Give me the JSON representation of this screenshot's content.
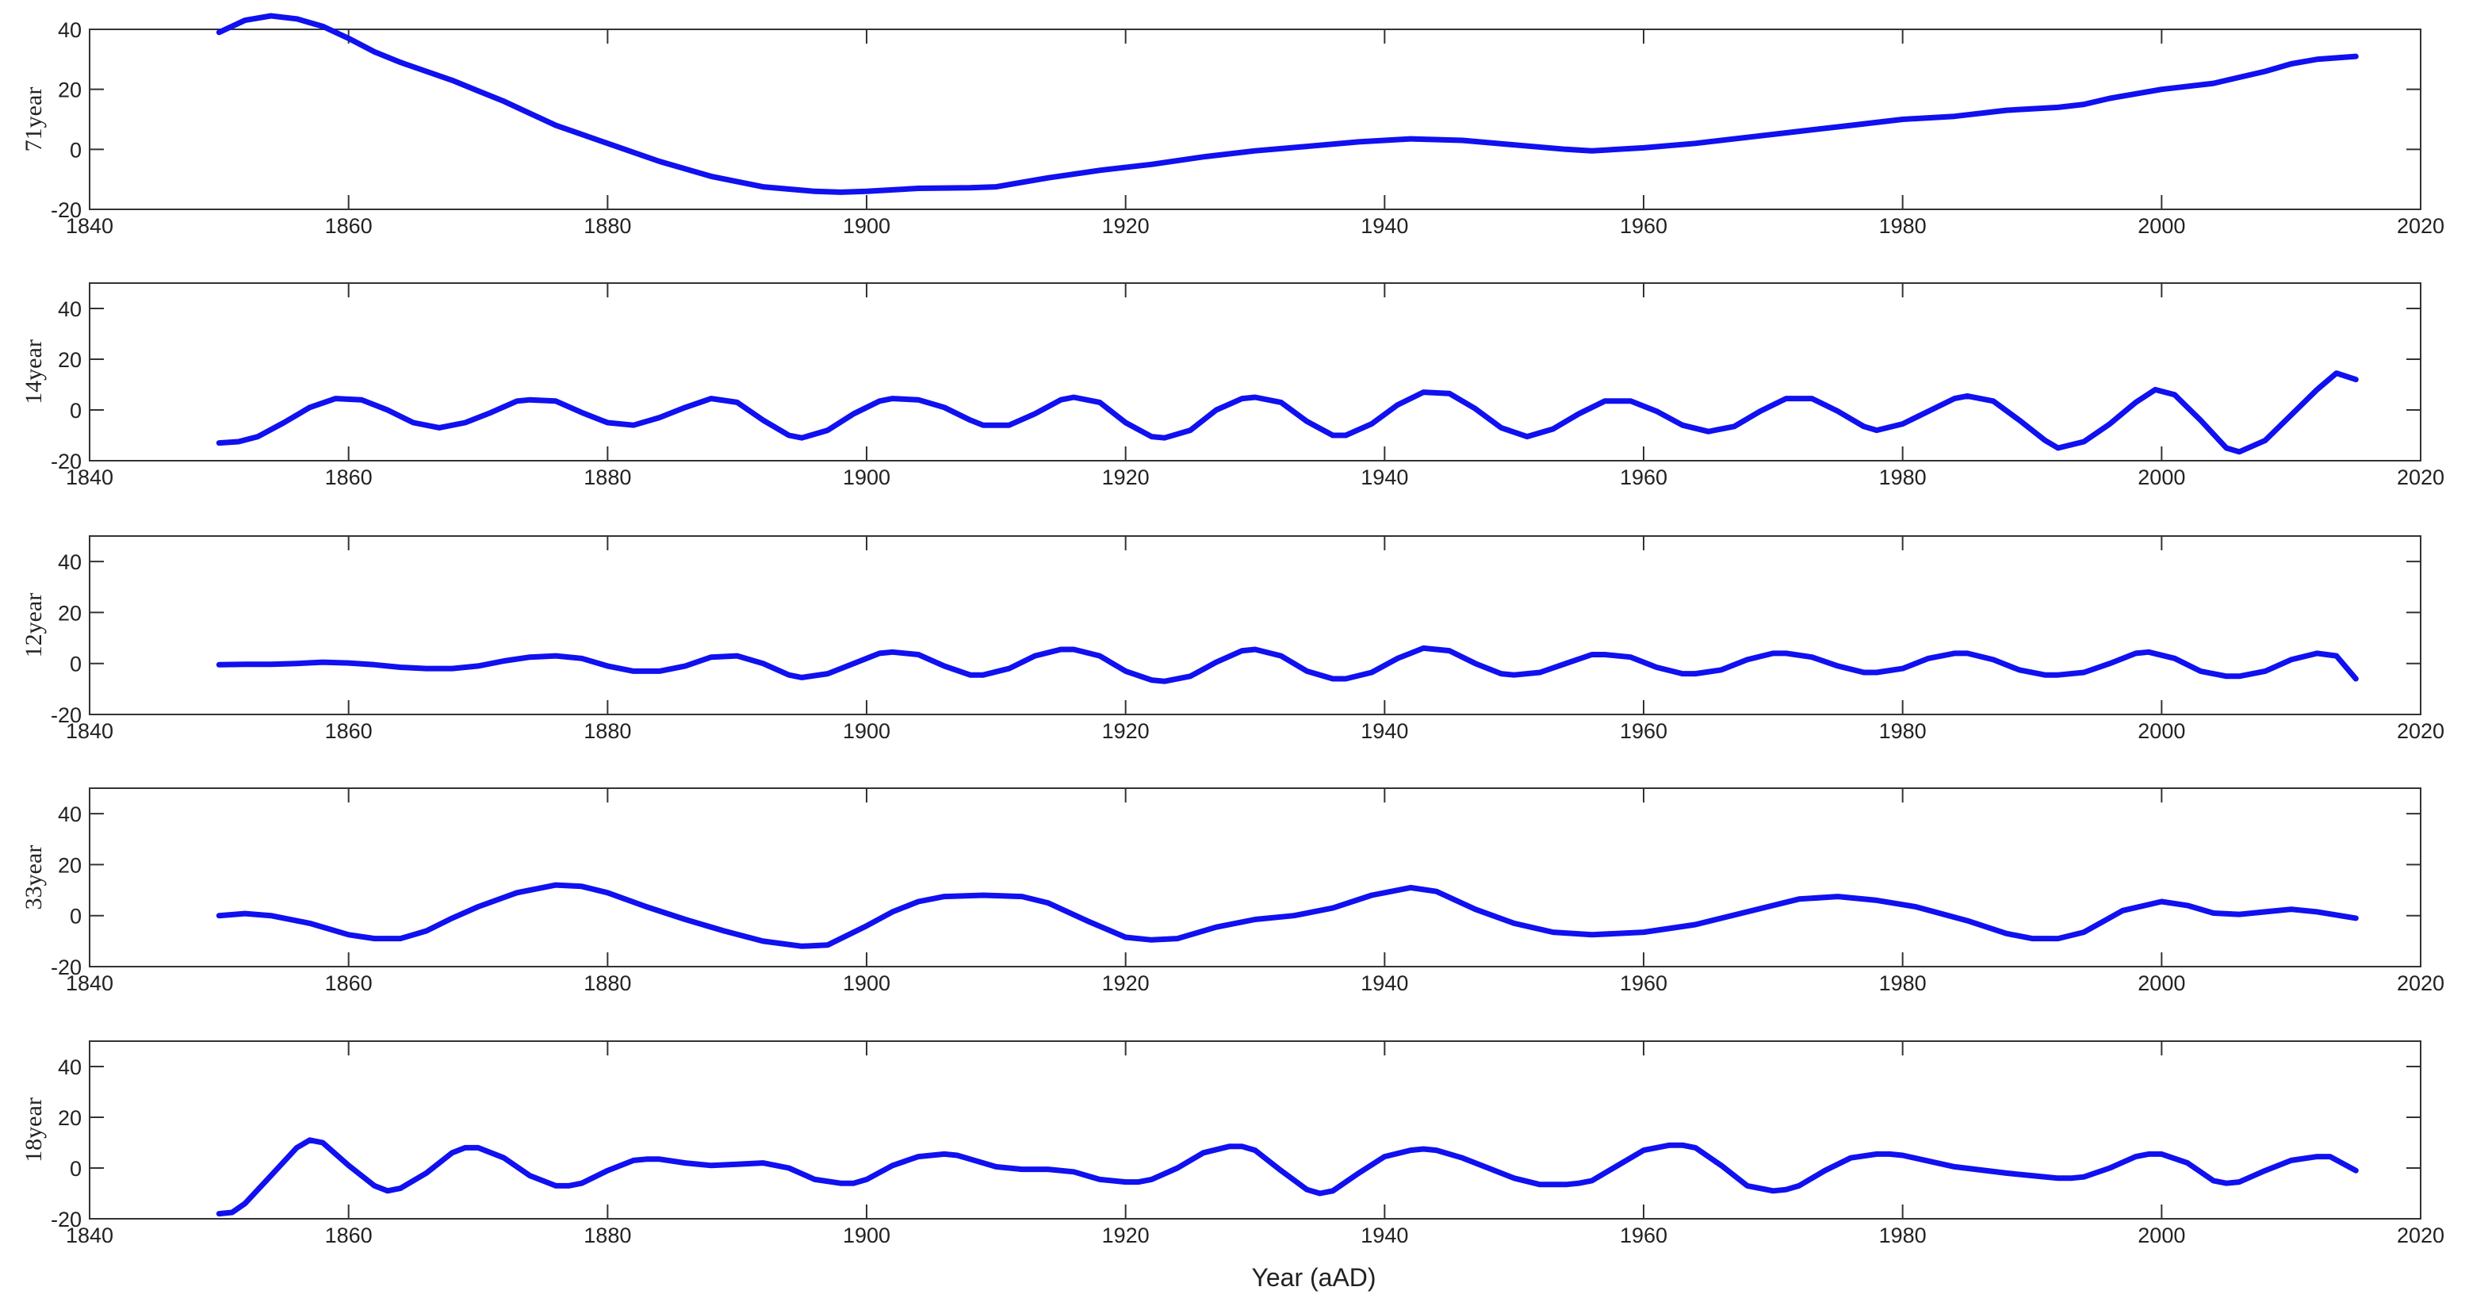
{
  "figure": {
    "xlabel": "Year (aAD)",
    "line_color": "#1010f0",
    "x_ticks": [
      1840,
      1860,
      1880,
      1900,
      1920,
      1940,
      1960,
      1980,
      2000,
      2020
    ],
    "xlim": [
      1840,
      2020
    ]
  },
  "chart_data": [
    {
      "type": "line",
      "ylabel": "71year",
      "ylim": [
        -20,
        40
      ],
      "y_ticks": [
        -20,
        0,
        20,
        40
      ],
      "grid": false,
      "series": [
        {
          "x": [
            1850,
            1852,
            1854,
            1856,
            1858,
            1860,
            1862,
            1864,
            1866,
            1868,
            1870,
            1872,
            1874,
            1876,
            1878,
            1880,
            1884,
            1888,
            1892,
            1896,
            1898,
            1900,
            1904,
            1908,
            1910,
            1914,
            1918,
            1922,
            1926,
            1930,
            1934,
            1938,
            1942,
            1946,
            1950,
            1954,
            1956,
            1960,
            1964,
            1968,
            1972,
            1976,
            1980,
            1984,
            1988,
            1992,
            1994,
            1996,
            2000,
            2004,
            2006,
            2008,
            2010,
            2012,
            2015
          ],
          "y": [
            39,
            43,
            44.5,
            43.5,
            41,
            37,
            32.5,
            29,
            26,
            23,
            19.5,
            16,
            12,
            8,
            5,
            2,
            -4,
            -9,
            -12.5,
            -14,
            -14.3,
            -14,
            -13,
            -12.8,
            -12.5,
            -9.5,
            -7,
            -5,
            -2.5,
            -0.5,
            1,
            2.5,
            3.5,
            3,
            1.5,
            0,
            -0.5,
            0.5,
            2,
            4,
            6,
            8,
            10,
            11,
            13,
            14,
            15,
            17,
            20,
            22,
            24,
            26,
            28.5,
            30,
            31
          ]
        }
      ]
    },
    {
      "type": "line",
      "ylabel": "14year",
      "ylim": [
        -20,
        50
      ],
      "y_ticks": [
        -20,
        0,
        20,
        40
      ],
      "grid": false,
      "series": [
        {
          "x": [
            1850,
            1851.5,
            1853,
            1855,
            1857,
            1859,
            1861,
            1863,
            1865,
            1867,
            1869,
            1871,
            1873,
            1874,
            1876,
            1878,
            1880,
            1882,
            1884,
            1886,
            1888,
            1890,
            1892,
            1894,
            1895,
            1897,
            1899,
            1901,
            1902,
            1904,
            1906,
            1908,
            1909,
            1911,
            1913,
            1915,
            1916,
            1918,
            1920,
            1922,
            1923,
            1925,
            1927,
            1929,
            1930,
            1932,
            1934,
            1936,
            1937,
            1939,
            1941,
            1943,
            1945,
            1947,
            1949,
            1951,
            1953,
            1955,
            1957,
            1959,
            1961,
            1963,
            1965,
            1967,
            1969,
            1971,
            1973,
            1975,
            1977,
            1978,
            1980,
            1982,
            1984,
            1985,
            1987,
            1989,
            1991,
            1992,
            1994,
            1996,
            1998,
            1999.5,
            2001,
            2003,
            2005,
            2006,
            2008,
            2010,
            2012,
            2013.5,
            2015
          ],
          "y": [
            -13,
            -12.5,
            -10.5,
            -5,
            1,
            4.5,
            4,
            0,
            -5,
            -7,
            -5,
            -1,
            3.5,
            4,
            3.5,
            -1,
            -5,
            -6,
            -3,
            1,
            4.5,
            3,
            -4,
            -10,
            -11,
            -8,
            -1.5,
            3.5,
            4.5,
            4,
            1,
            -4,
            -6,
            -6,
            -1.5,
            4,
            5,
            3,
            -5,
            -10.5,
            -11,
            -8,
            0,
            4.5,
            5,
            3,
            -4.5,
            -10,
            -10,
            -5.5,
            2,
            7,
            6.5,
            0.5,
            -7,
            -10.5,
            -7.5,
            -1.5,
            3.5,
            3.5,
            -0.5,
            -6,
            -8.5,
            -6.5,
            -0.5,
            4.5,
            4.5,
            -0.5,
            -6.5,
            -8,
            -5.5,
            -0.5,
            4.5,
            5.5,
            3.5,
            -4,
            -12,
            -15,
            -12.5,
            -5.5,
            3,
            8,
            6,
            -4,
            -15,
            -16.5,
            -12,
            -2,
            8,
            14.5,
            12
          ]
        }
      ]
    },
    {
      "type": "line",
      "ylabel": "12year",
      "ylim": [
        -20,
        50
      ],
      "y_ticks": [
        -20,
        0,
        20,
        40
      ],
      "grid": false,
      "series": [
        {
          "x": [
            1850,
            1852,
            1854,
            1856,
            1858,
            1860,
            1862,
            1864,
            1866,
            1868,
            1870,
            1872,
            1874,
            1876,
            1878,
            1880,
            1882,
            1884,
            1886,
            1888,
            1890,
            1892,
            1894,
            1895,
            1897,
            1899,
            1901,
            1902,
            1904,
            1906,
            1908,
            1909,
            1911,
            1913,
            1915,
            1916,
            1918,
            1920,
            1922,
            1923,
            1925,
            1927,
            1929,
            1930,
            1932,
            1934,
            1936,
            1937,
            1939,
            1941,
            1943,
            1945,
            1947,
            1949,
            1950,
            1952,
            1954,
            1956,
            1957,
            1959,
            1961,
            1963,
            1964,
            1966,
            1968,
            1970,
            1971,
            1973,
            1975,
            1977,
            1978,
            1980,
            1982,
            1984,
            1985,
            1987,
            1989,
            1991,
            1992,
            1994,
            1996,
            1998,
            1999,
            2001,
            2003,
            2005,
            2006,
            2008,
            2010,
            2012,
            2013.5,
            2015
          ],
          "y": [
            -0.5,
            -0.3,
            -0.3,
            0,
            0.5,
            0.2,
            -0.5,
            -1.5,
            -2,
            -2,
            -1,
            1,
            2.5,
            3,
            2,
            -1,
            -3,
            -3,
            -1,
            2.5,
            3,
            0,
            -4.5,
            -5.5,
            -4,
            0,
            4,
            4.5,
            3.5,
            -1,
            -4.5,
            -4.5,
            -2,
            3,
            5.5,
            5.5,
            3,
            -3,
            -6.5,
            -7,
            -5,
            0.5,
            5,
            5.5,
            3,
            -3,
            -6,
            -6,
            -3.5,
            2,
            6,
            5,
            0,
            -4,
            -4.5,
            -3.5,
            0,
            3.5,
            3.5,
            2.5,
            -1.5,
            -4,
            -4,
            -2.5,
            1.5,
            4,
            4,
            2.5,
            -1,
            -3.5,
            -3.5,
            -2,
            2,
            4,
            4,
            1.5,
            -2.5,
            -4.5,
            -4.5,
            -3.5,
            0,
            4,
            4.5,
            2,
            -3,
            -5,
            -5,
            -3,
            1.5,
            4,
            3,
            -6
          ]
        }
      ]
    },
    {
      "type": "line",
      "ylabel": "33year",
      "ylim": [
        -20,
        50
      ],
      "y_ticks": [
        -20,
        0,
        20,
        40
      ],
      "grid": false,
      "series": [
        {
          "x": [
            1850,
            1852,
            1854,
            1857,
            1860,
            1862,
            1864,
            1866,
            1868,
            1870,
            1873,
            1876,
            1878,
            1880,
            1883,
            1886,
            1889,
            1892,
            1895,
            1897,
            1900,
            1902,
            1904,
            1906,
            1909,
            1912,
            1914,
            1917,
            1920,
            1922,
            1924,
            1927,
            1930,
            1933,
            1936,
            1939,
            1942,
            1944,
            1947,
            1950,
            1953,
            1956,
            1960,
            1964,
            1968,
            1972,
            1975,
            1978,
            1981,
            1985,
            1988,
            1990,
            1992,
            1994,
            1997,
            2000,
            2002,
            2004,
            2006,
            2008,
            2010,
            2012,
            2015
          ],
          "y": [
            0,
            0.8,
            0,
            -3,
            -7.5,
            -9,
            -9,
            -6,
            -1,
            3.5,
            9,
            12,
            11.5,
            9,
            3.5,
            -1.5,
            -6,
            -10,
            -12,
            -11.5,
            -4,
            1.5,
            5.5,
            7.5,
            8,
            7.5,
            5,
            -2,
            -8.5,
            -9.5,
            -9,
            -4.5,
            -1.5,
            0,
            3,
            8,
            11,
            9.5,
            2.5,
            -3,
            -6.5,
            -7.5,
            -6.5,
            -3.5,
            1.5,
            6.5,
            7.5,
            6,
            3.5,
            -2,
            -7,
            -9,
            -9,
            -6.5,
            2,
            5.5,
            4,
            1,
            0.5,
            1.5,
            2.5,
            1.5,
            -1
          ]
        }
      ]
    },
    {
      "type": "line",
      "ylabel": "18year",
      "ylim": [
        -20,
        50
      ],
      "y_ticks": [
        -20,
        0,
        20,
        40
      ],
      "grid": false,
      "series": [
        {
          "x": [
            1850,
            1851,
            1852,
            1854,
            1856,
            1857,
            1858,
            1860,
            1862,
            1863,
            1864,
            1866,
            1868,
            1869,
            1870,
            1872,
            1874,
            1876,
            1877,
            1878,
            1880,
            1882,
            1883,
            1884,
            1886,
            1888,
            1890,
            1892,
            1894,
            1896,
            1898,
            1899,
            1900,
            1902,
            1904,
            1906,
            1907,
            1908,
            1910,
            1912,
            1914,
            1916,
            1918,
            1920,
            1921,
            1922,
            1924,
            1926,
            1928,
            1929,
            1930,
            1932,
            1934,
            1935,
            1936,
            1938,
            1940,
            1942,
            1943,
            1944,
            1946,
            1948,
            1950,
            1952,
            1954,
            1955,
            1956,
            1958,
            1960,
            1962,
            1963,
            1964,
            1966,
            1968,
            1970,
            1971,
            1972,
            1974,
            1976,
            1978,
            1979,
            1980,
            1984,
            1988,
            1990,
            1992,
            1993,
            1994,
            1996,
            1998,
            1999,
            2000,
            2002,
            2004,
            2005,
            2006,
            2008,
            2010,
            2012,
            2013,
            2015
          ],
          "y": [
            -18,
            -17.5,
            -14,
            -3,
            8,
            11,
            10,
            1,
            -7,
            -9,
            -8,
            -2,
            6,
            8,
            8,
            4,
            -3,
            -7,
            -7,
            -6,
            -1,
            3,
            3.5,
            3.5,
            2,
            1,
            1.5,
            2,
            0,
            -4.5,
            -6,
            -6,
            -4.5,
            1,
            4.5,
            5.5,
            5,
            3.5,
            0.5,
            -0.5,
            -0.5,
            -1.5,
            -4.5,
            -5.5,
            -5.5,
            -4.5,
            0,
            6,
            8.5,
            8.5,
            7,
            -1,
            -8.5,
            -10,
            -9,
            -2,
            4.5,
            7,
            7.5,
            7,
            4,
            0,
            -4,
            -6.5,
            -6.5,
            -6,
            -5,
            1,
            7,
            9,
            9,
            8,
            1,
            -7,
            -9,
            -8.5,
            -7,
            -1,
            4,
            5.5,
            5.5,
            5,
            0.5,
            -2,
            -3,
            -4,
            -4,
            -3.5,
            0,
            4.5,
            5.5,
            5.5,
            2,
            -5,
            -6,
            -5.5,
            -1,
            3,
            4.5,
            4.5,
            -1
          ]
        }
      ]
    }
  ]
}
